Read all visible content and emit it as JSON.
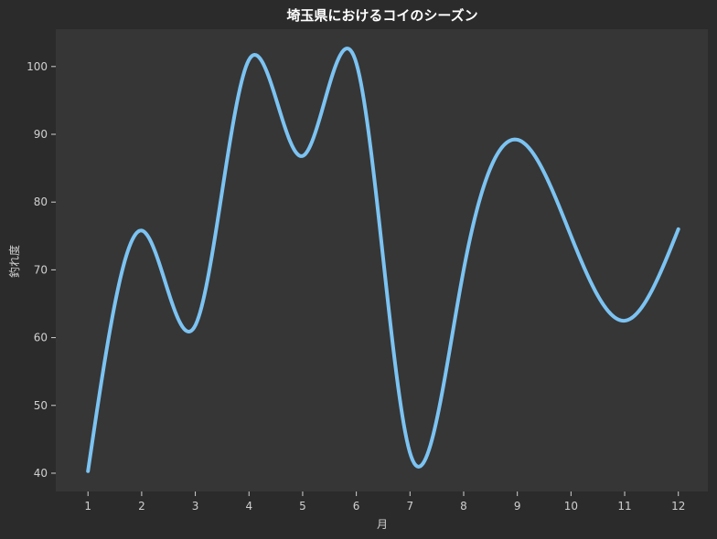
{
  "chart_data": {
    "type": "line",
    "title": "埼玉県におけるコイのシーズン",
    "xlabel": "月",
    "ylabel": "釣れ度",
    "x": [
      1,
      2,
      3,
      4,
      5,
      6,
      7,
      8,
      9,
      10,
      11,
      12
    ],
    "series": [
      {
        "values": [
          40.3,
          75.8,
          61.8,
          101.0,
          86.8,
          100.5,
          43.0,
          70.0,
          89.2,
          75.0,
          62.5,
          76.0
        ]
      }
    ],
    "xlim": [
      0.4,
      12.55
    ],
    "ylim": [
      37.3,
      105.5
    ],
    "xticks": [
      1,
      2,
      3,
      4,
      5,
      6,
      7,
      8,
      9,
      10,
      11,
      12
    ],
    "yticks": [
      40,
      50,
      60,
      70,
      80,
      90,
      100
    ],
    "grid": false,
    "colors": {
      "background": "#2b2b2b",
      "plot_background": "#363636",
      "line": "#7cc3f2",
      "text": "#d0d0d0"
    }
  }
}
